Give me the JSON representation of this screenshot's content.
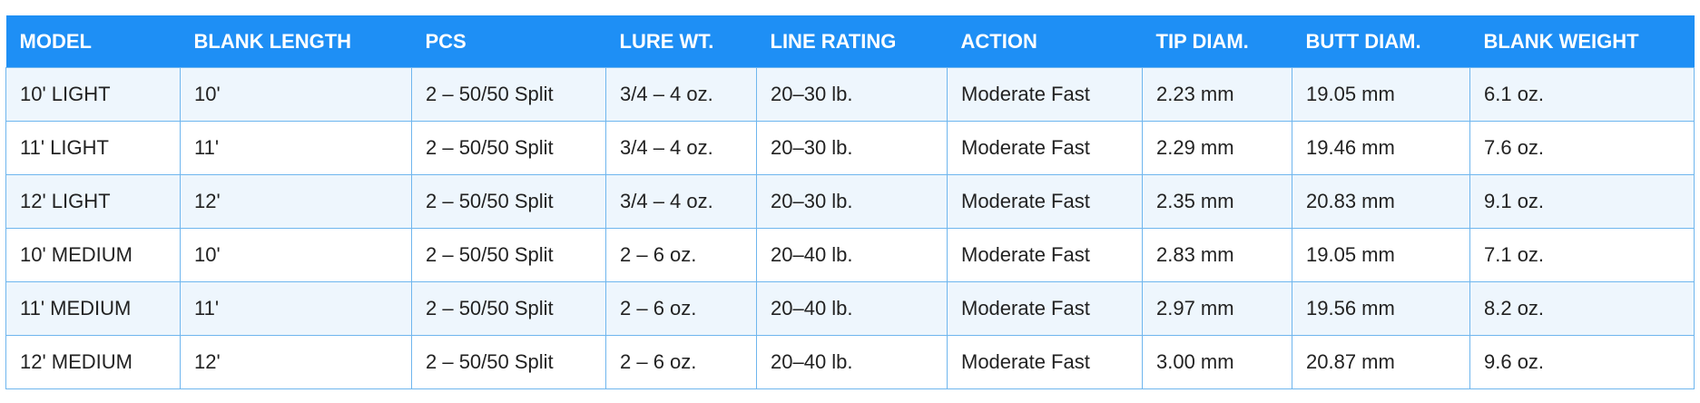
{
  "table": {
    "headers": [
      "MODEL",
      "BLANK LENGTH",
      "PCS",
      "LURE WT.",
      "LINE RATING",
      "ACTION",
      "TIP DIAM.",
      "BUTT DIAM.",
      "BLANK WEIGHT"
    ],
    "rows": [
      [
        "10' LIGHT",
        "10'",
        "2 – 50/50 Split",
        "3/4 – 4 oz.",
        "20–30 lb.",
        "Moderate Fast",
        "2.23 mm",
        "19.05 mm",
        "6.1 oz."
      ],
      [
        "11' LIGHT",
        "11'",
        "2 – 50/50 Split",
        "3/4 – 4 oz.",
        "20–30 lb.",
        "Moderate Fast",
        "2.29 mm",
        "19.46 mm",
        "7.6 oz."
      ],
      [
        "12' LIGHT",
        "12'",
        "2 – 50/50 Split",
        "3/4 – 4 oz.",
        "20–30 lb.",
        "Moderate Fast",
        "2.35 mm",
        "20.83 mm",
        "9.1 oz."
      ],
      [
        "10' MEDIUM",
        "10'",
        "2 – 50/50 Split",
        "2 – 6 oz.",
        "20–40 lb.",
        "Moderate Fast",
        "2.83 mm",
        "19.05 mm",
        "7.1 oz."
      ],
      [
        "11' MEDIUM",
        "11'",
        "2 – 50/50 Split",
        "2 – 6 oz.",
        "20–40 lb.",
        "Moderate Fast",
        "2.97 mm",
        "19.56 mm",
        "8.2 oz."
      ],
      [
        "12' MEDIUM",
        "12'",
        "2 – 50/50 Split",
        "2 – 6 oz.",
        "20–40 lb.",
        "Moderate Fast",
        "3.00 mm",
        "20.87 mm",
        "9.6 oz."
      ]
    ]
  }
}
